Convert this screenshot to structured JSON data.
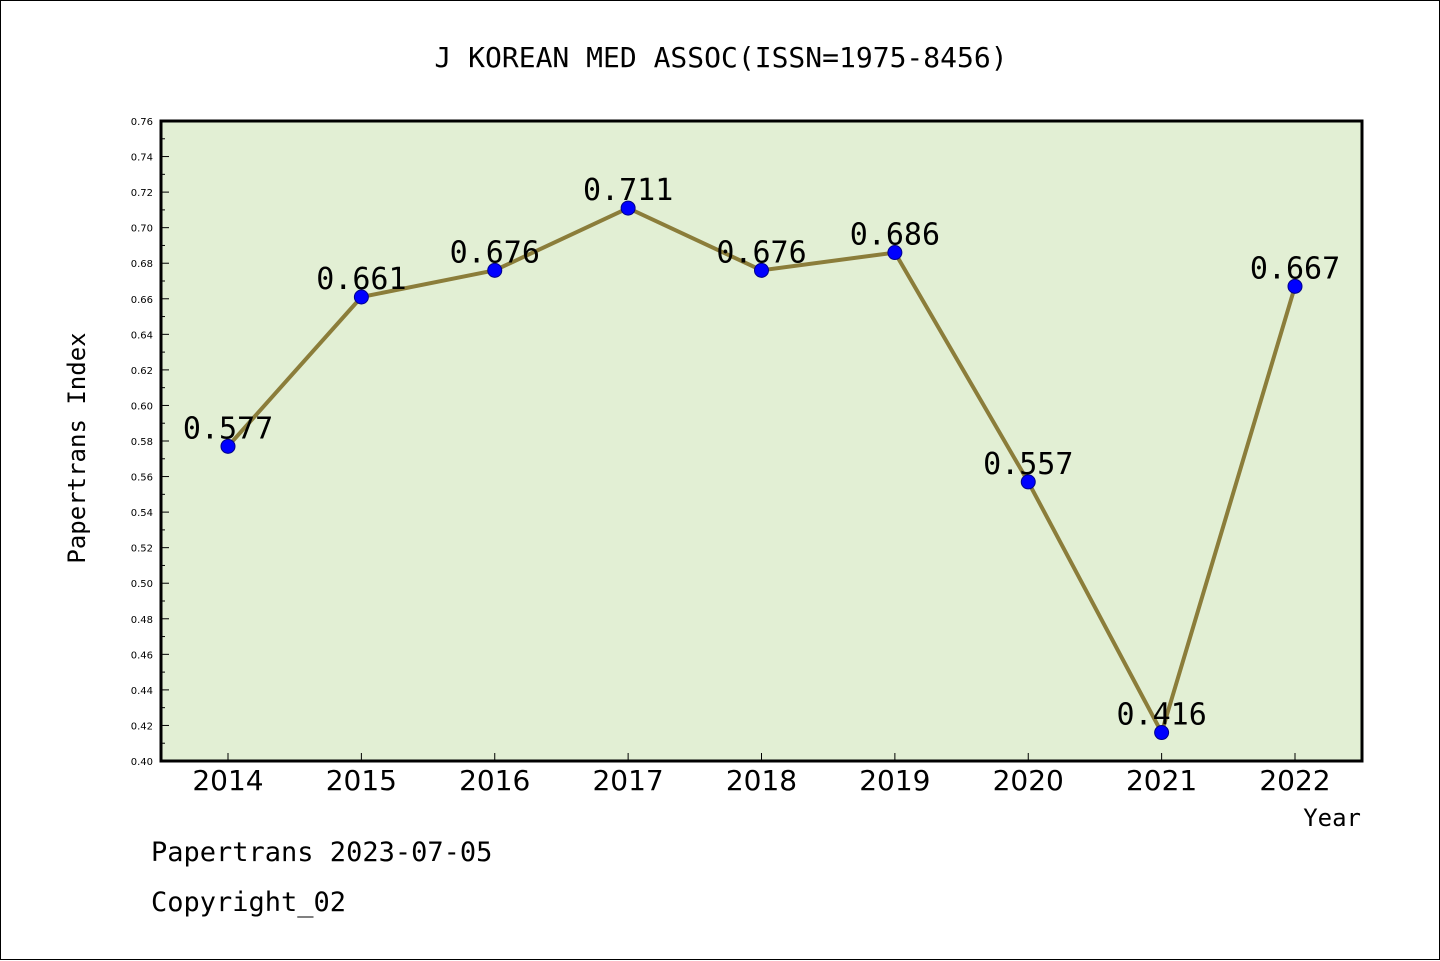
{
  "footer": {
    "source": "Papertrans 2023-07-05",
    "copyright": "Copyright_02"
  },
  "colors": {
    "plot_background": "#e2efd4",
    "line": "#8b7d3a",
    "marker": "#0000ff"
  },
  "chart_data": {
    "type": "line",
    "title": "J KOREAN MED ASSOC(ISSN=1975-8456)",
    "xlabel": "Year",
    "ylabel": "Papertrans Index",
    "categories": [
      "2014",
      "2015",
      "2016",
      "2017",
      "2018",
      "2019",
      "2020",
      "2021",
      "2022"
    ],
    "series": [
      {
        "values": [
          0.577,
          0.661,
          0.676,
          0.711,
          0.676,
          0.686,
          0.557,
          0.416,
          0.667
        ],
        "labels": [
          "0.577",
          "0.661",
          "0.676",
          "0.711",
          "0.676",
          "0.686",
          "0.557",
          "0.416",
          "0.667"
        ]
      }
    ],
    "ylim": [
      0.4,
      0.76
    ],
    "ytick_step": 0.02,
    "ytick_labels": [
      "0.40",
      "0.42",
      "0.44",
      "0.46",
      "0.48",
      "0.50",
      "0.52",
      "0.54",
      "0.56",
      "0.58",
      "0.60",
      "0.62",
      "0.64",
      "0.66",
      "0.68",
      "0.70",
      "0.72",
      "0.74",
      "0.76"
    ],
    "grid": false,
    "legend": "none"
  }
}
